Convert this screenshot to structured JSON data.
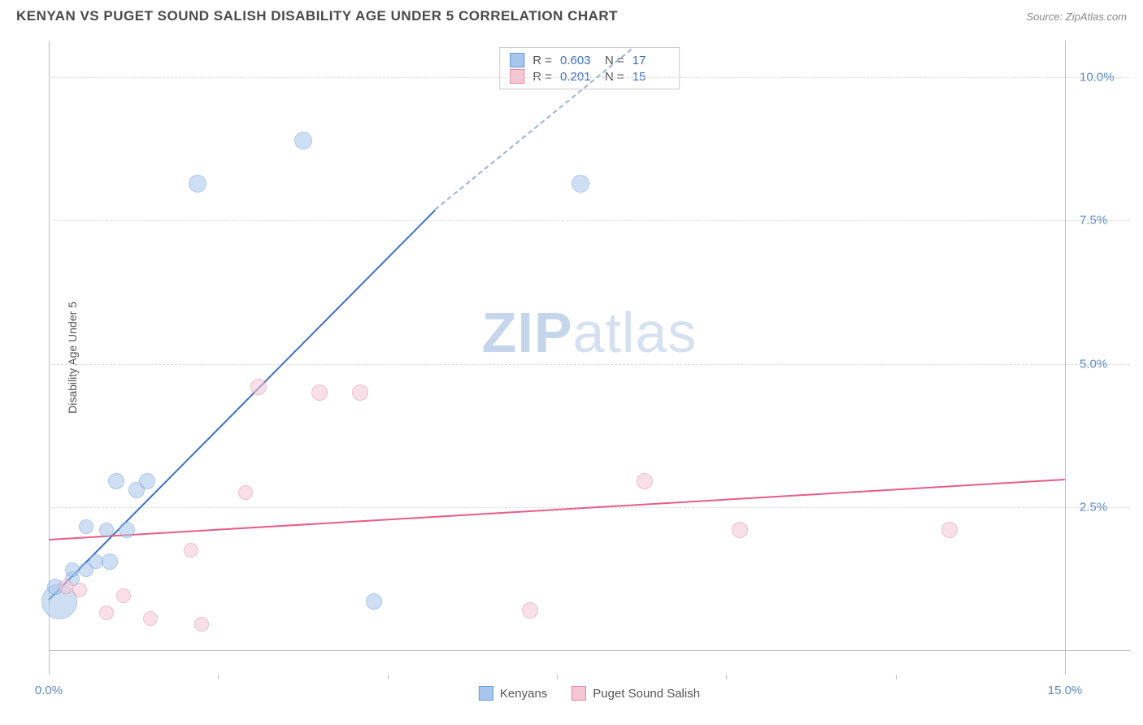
{
  "header": {
    "title": "KENYAN VS PUGET SOUND SALISH DISABILITY AGE UNDER 5 CORRELATION CHART",
    "source": "Source: ZipAtlas.com"
  },
  "watermark": {
    "zip": "ZIP",
    "atlas": "atlas"
  },
  "chart": {
    "type": "scatter",
    "background_color": "#ffffff",
    "grid_color": "#dcdcdc",
    "axis_color": "#bbbbbb",
    "y_axis_label": "Disability Age Under 5",
    "y_axis_label_fontsize": 14,
    "tick_label_color": "#5b89c7",
    "tick_label_fontsize": 15,
    "xlim": [
      0,
      15
    ],
    "ylim": [
      0,
      10.5
    ],
    "ytick_values": [
      2.5,
      5.0,
      7.5,
      10.0
    ],
    "ytick_labels": [
      "2.5%",
      "5.0%",
      "7.5%",
      "10.0%"
    ],
    "xtick_values": [
      0,
      15
    ],
    "xtick_labels": [
      "0.0%",
      "15.0%"
    ],
    "xtick_minor": [
      2.5,
      5.0,
      7.5,
      10.0,
      12.5
    ],
    "series": [
      {
        "name": "Kenyans",
        "fill_color": "#a8c5eb",
        "stroke_color": "#6a9bd8",
        "fill_opacity": 0.55,
        "trend_color": "#3b6fc4",
        "trend_width": 2,
        "trend": {
          "x1": 0,
          "y1": 0.9,
          "x2": 5.7,
          "y2": 7.7,
          "dash_extend_x": 8.6,
          "dash_extend_y": 10.5
        },
        "r_value": "0.603",
        "n_value": "17",
        "points": [
          {
            "x": 0.15,
            "y": 0.85,
            "r": 22
          },
          {
            "x": 0.1,
            "y": 1.1,
            "r": 10
          },
          {
            "x": 0.35,
            "y": 1.25,
            "r": 9
          },
          {
            "x": 0.35,
            "y": 1.4,
            "r": 9
          },
          {
            "x": 0.55,
            "y": 1.4,
            "r": 9
          },
          {
            "x": 0.7,
            "y": 1.55,
            "r": 9
          },
          {
            "x": 0.9,
            "y": 1.55,
            "r": 10
          },
          {
            "x": 0.55,
            "y": 2.15,
            "r": 9
          },
          {
            "x": 0.85,
            "y": 2.1,
            "r": 9
          },
          {
            "x": 1.15,
            "y": 2.1,
            "r": 10
          },
          {
            "x": 1.0,
            "y": 2.95,
            "r": 10
          },
          {
            "x": 1.3,
            "y": 2.8,
            "r": 10
          },
          {
            "x": 1.45,
            "y": 2.95,
            "r": 10
          },
          {
            "x": 4.8,
            "y": 0.85,
            "r": 10
          },
          {
            "x": 2.2,
            "y": 8.15,
            "r": 11
          },
          {
            "x": 3.75,
            "y": 8.9,
            "r": 11
          },
          {
            "x": 7.85,
            "y": 8.15,
            "r": 11
          }
        ]
      },
      {
        "name": "Puget Sound Salish",
        "fill_color": "#f5c6d4",
        "stroke_color": "#e68aa6",
        "fill_opacity": 0.55,
        "trend_color": "#e75d88",
        "trend_width": 2,
        "trend": {
          "x1": 0,
          "y1": 1.95,
          "x2": 15.0,
          "y2": 3.0
        },
        "r_value": "0.201",
        "n_value": "15",
        "points": [
          {
            "x": 0.25,
            "y": 1.1,
            "r": 9
          },
          {
            "x": 0.45,
            "y": 1.05,
            "r": 9
          },
          {
            "x": 0.85,
            "y": 0.65,
            "r": 9
          },
          {
            "x": 1.1,
            "y": 0.95,
            "r": 9
          },
          {
            "x": 1.5,
            "y": 0.55,
            "r": 9
          },
          {
            "x": 2.1,
            "y": 1.75,
            "r": 9
          },
          {
            "x": 2.25,
            "y": 0.45,
            "r": 9
          },
          {
            "x": 2.9,
            "y": 2.75,
            "r": 9
          },
          {
            "x": 3.1,
            "y": 4.6,
            "r": 10
          },
          {
            "x": 4.0,
            "y": 4.5,
            "r": 10
          },
          {
            "x": 4.6,
            "y": 4.5,
            "r": 10
          },
          {
            "x": 7.1,
            "y": 0.7,
            "r": 10
          },
          {
            "x": 8.8,
            "y": 2.95,
            "r": 10
          },
          {
            "x": 10.2,
            "y": 2.1,
            "r": 10
          },
          {
            "x": 13.3,
            "y": 2.1,
            "r": 10
          }
        ]
      }
    ],
    "legend_top": {
      "border_color": "#cccccc",
      "r_label": "R  =",
      "n_label": "N  ="
    },
    "legend_bottom": {
      "items": [
        "Kenyans",
        "Puget Sound Salish"
      ]
    }
  }
}
